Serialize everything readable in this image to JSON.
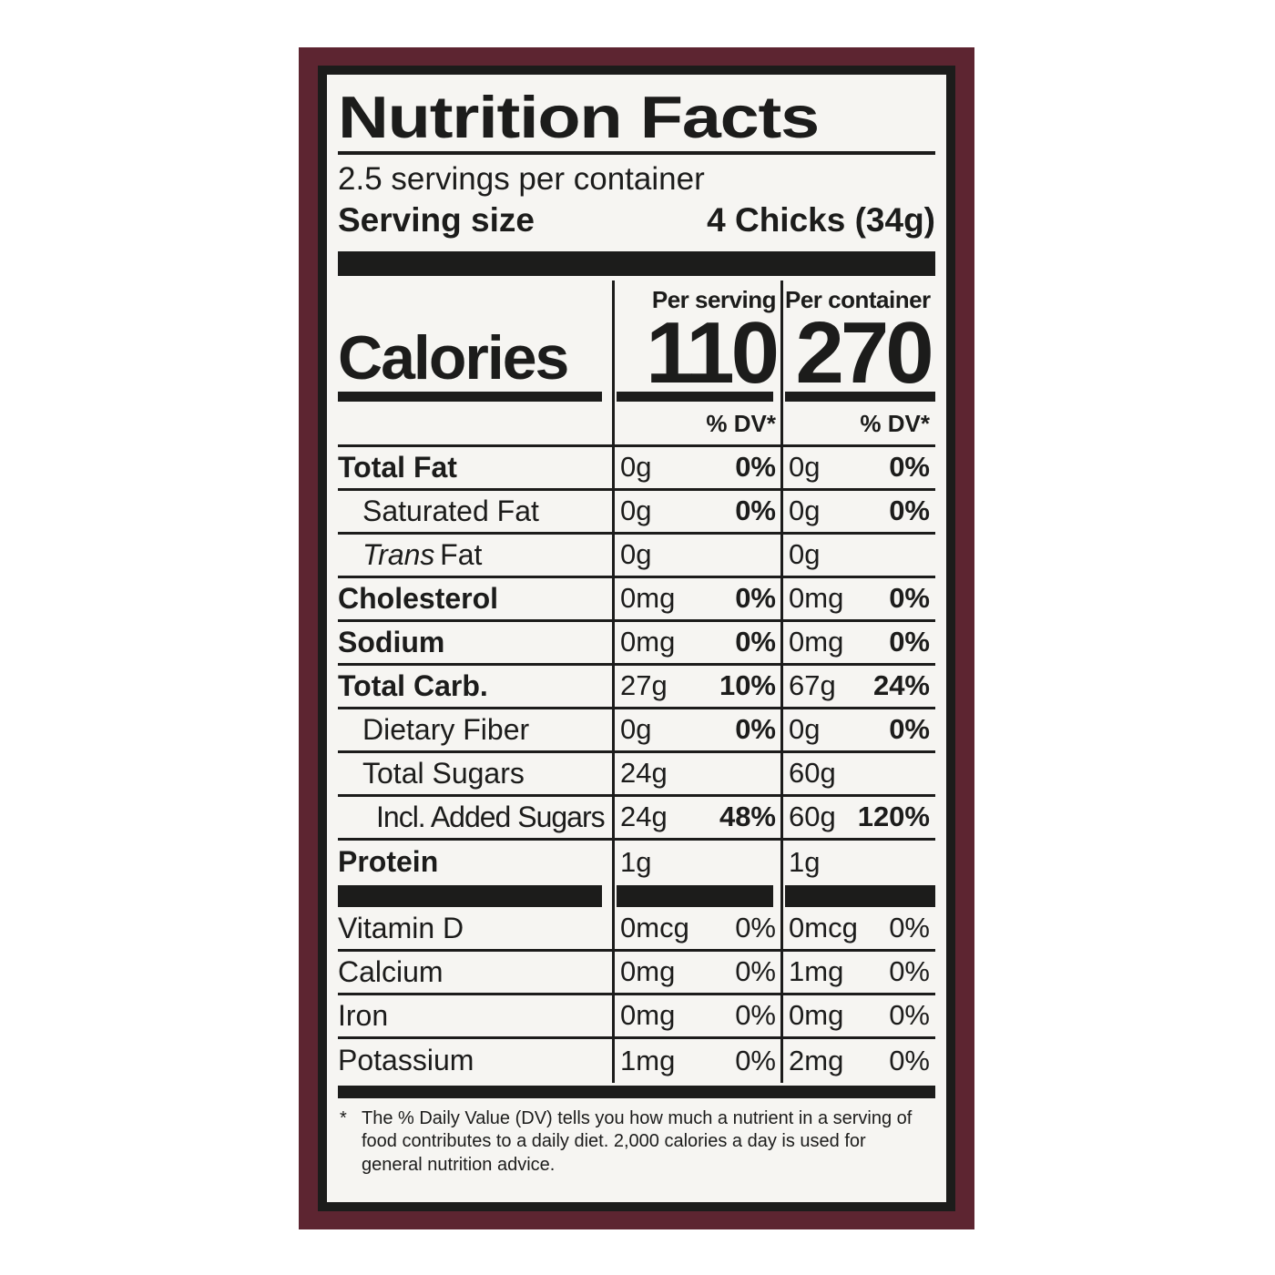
{
  "label": {
    "title": "Nutrition Facts",
    "servings_per_container": "2.5 servings per container",
    "serving_size_label": "Serving size",
    "serving_size_value": "4 Chicks (34g)",
    "calories": {
      "heading": "Calories",
      "per_serving": {
        "header": "Per serving",
        "value": "110"
      },
      "per_container": {
        "header": "Per container",
        "value": "270"
      },
      "dv_header": "% DV*"
    },
    "nutrients": [
      {
        "name": "Total Fat",
        "serving": {
          "amount": "0g",
          "dv": "0%"
        },
        "container": {
          "amount": "0g",
          "dv": "0%"
        }
      },
      {
        "name": "Saturated Fat",
        "serving": {
          "amount": "0g",
          "dv": "0%"
        },
        "container": {
          "amount": "0g",
          "dv": "0%"
        }
      },
      {
        "name_italic": "Trans",
        "name": "Fat",
        "serving": {
          "amount": "0g",
          "dv": ""
        },
        "container": {
          "amount": "0g",
          "dv": ""
        }
      },
      {
        "name": "Cholesterol",
        "serving": {
          "amount": "0mg",
          "dv": "0%"
        },
        "container": {
          "amount": "0mg",
          "dv": "0%"
        }
      },
      {
        "name": "Sodium",
        "serving": {
          "amount": "0mg",
          "dv": "0%"
        },
        "container": {
          "amount": "0mg",
          "dv": "0%"
        }
      },
      {
        "name": "Total Carb.",
        "serving": {
          "amount": "27g",
          "dv": "10%"
        },
        "container": {
          "amount": "67g",
          "dv": "24%"
        }
      },
      {
        "name": "Dietary Fiber",
        "serving": {
          "amount": "0g",
          "dv": "0%"
        },
        "container": {
          "amount": "0g",
          "dv": "0%"
        }
      },
      {
        "name": "Total Sugars",
        "serving": {
          "amount": "24g",
          "dv": ""
        },
        "container": {
          "amount": "60g",
          "dv": ""
        }
      },
      {
        "name": "Incl. Added Sugars",
        "serving": {
          "amount": "24g",
          "dv": "48%"
        },
        "container": {
          "amount": "60g",
          "dv": "120%"
        }
      },
      {
        "name": "Protein",
        "serving": {
          "amount": "1g",
          "dv": ""
        },
        "container": {
          "amount": "1g",
          "dv": ""
        }
      }
    ],
    "vitamins": [
      {
        "name": "Vitamin D",
        "serving": {
          "amount": "0mcg",
          "dv": "0%"
        },
        "container": {
          "amount": "0mcg",
          "dv": "0%"
        }
      },
      {
        "name": "Calcium",
        "serving": {
          "amount": "0mg",
          "dv": "0%"
        },
        "container": {
          "amount": "1mg",
          "dv": "0%"
        }
      },
      {
        "name": "Iron",
        "serving": {
          "amount": "0mg",
          "dv": "0%"
        },
        "container": {
          "amount": "0mg",
          "dv": "0%"
        }
      },
      {
        "name": "Potassium",
        "serving": {
          "amount": "1mg",
          "dv": "0%"
        },
        "container": {
          "amount": "2mg",
          "dv": "0%"
        }
      }
    ],
    "footnote_marker": "*",
    "footnote_lines": [
      "The % Daily Value (DV) tells you how much a nutrient in a serving of",
      "food contributes to a daily diet. 2,000 calories a day is used for",
      "general nutrition advice."
    ],
    "footnote_text": "The % Daily Value (DV) tells you how much a nutrient in a serving of food contributes to a daily diet. 2,000 calories a day is used for general nutrition advice."
  },
  "colors": {
    "frame": "#5d2531",
    "ink": "#1c1c1b",
    "paper": "#f6f5f2",
    "page_background": "#ffffff"
  }
}
